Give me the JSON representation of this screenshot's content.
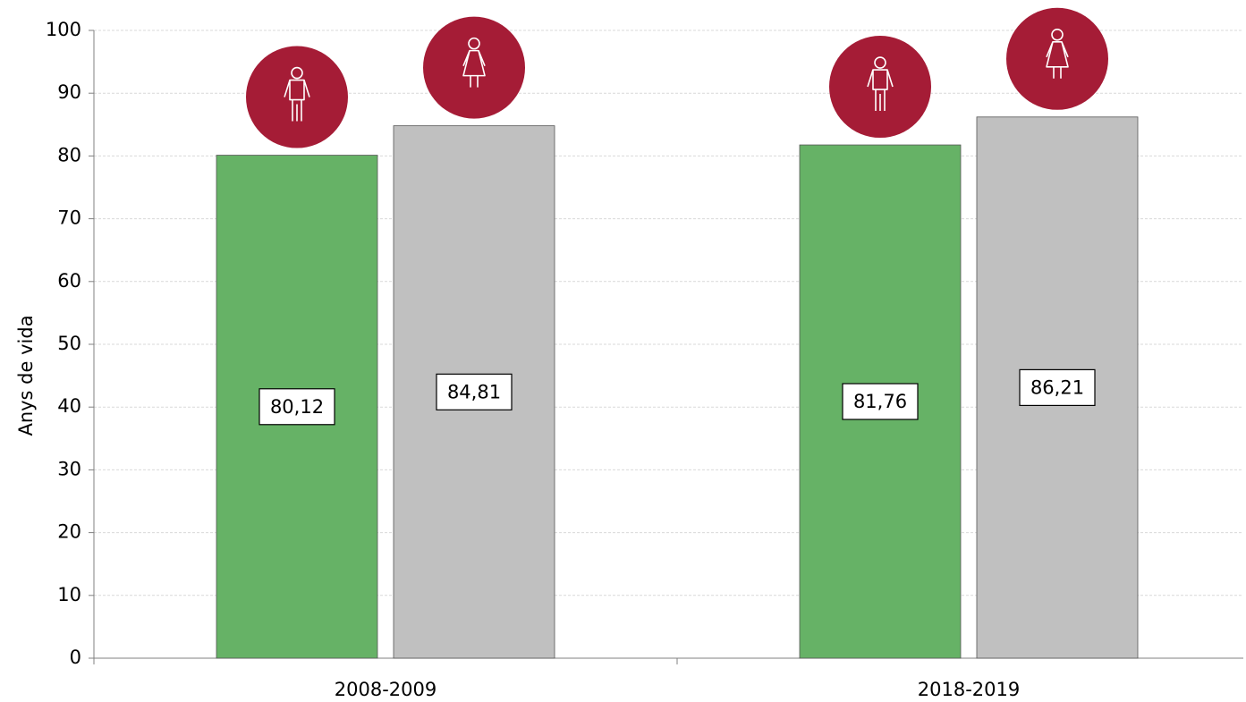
{
  "chart_data": {
    "type": "bar",
    "y_label": "Anys de vida",
    "categories": [
      "2008-2009",
      "2018-2019"
    ],
    "series": [
      {
        "color": "#66b266",
        "values": [
          80.12,
          81.76
        ],
        "value_labels": [
          "80,12",
          "81,76"
        ]
      },
      {
        "color": "#c0c0c0",
        "values": [
          84.81,
          86.21
        ],
        "value_labels": [
          "84,81",
          "86,21"
        ]
      }
    ],
    "ylim": [
      0,
      100
    ],
    "yticks": [
      0,
      10,
      20,
      30,
      40,
      50,
      60,
      70,
      80,
      90,
      100
    ],
    "grid": true
  }
}
